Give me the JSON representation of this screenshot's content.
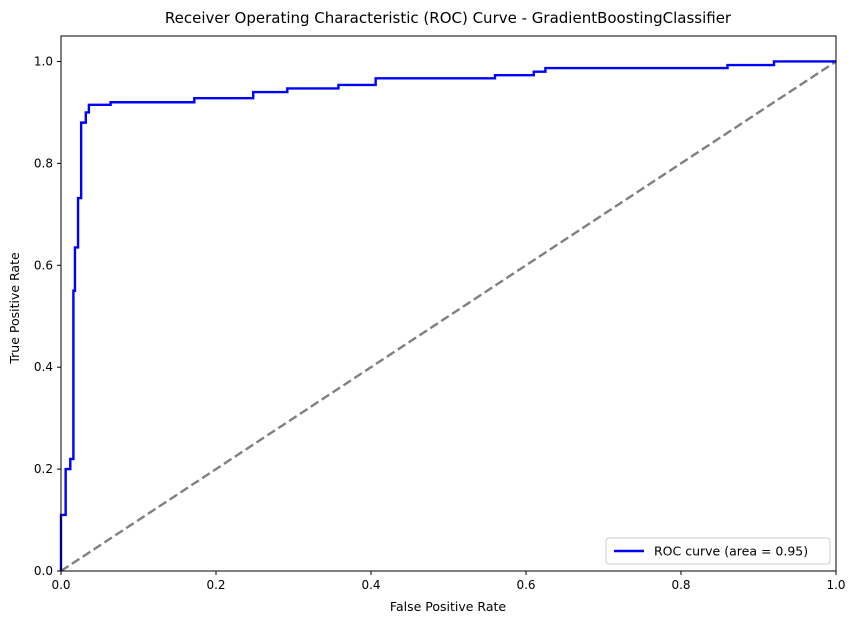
{
  "chart_data": {
    "type": "line",
    "title": "Receiver Operating Characteristic (ROC) Curve - GradientBoostingClassifier",
    "xlabel": "False Positive Rate",
    "ylabel": "True Positive Rate",
    "xlim": [
      0.0,
      1.0
    ],
    "ylim": [
      0.0,
      1.05
    ],
    "xticks": [
      "0.0",
      "0.2",
      "0.4",
      "0.6",
      "0.8",
      "1.0"
    ],
    "yticks": [
      "0.0",
      "0.2",
      "0.4",
      "0.6",
      "0.8",
      "1.0"
    ],
    "grid": false,
    "legend_position": "lower-right",
    "series": [
      {
        "name": "ROC curve (area = 0.95)",
        "color": "#0000ff",
        "style": "solid",
        "x": [
          0.0,
          0.0,
          0.006,
          0.006,
          0.012,
          0.012,
          0.016,
          0.016,
          0.018,
          0.018,
          0.022,
          0.022,
          0.026,
          0.026,
          0.032,
          0.032,
          0.036,
          0.036,
          0.064,
          0.064,
          0.172,
          0.172,
          0.248,
          0.248,
          0.292,
          0.292,
          0.358,
          0.358,
          0.406,
          0.406,
          0.56,
          0.56,
          0.61,
          0.61,
          0.625,
          0.625,
          0.86,
          0.86,
          0.92,
          0.92,
          1.0
        ],
        "y": [
          0.0,
          0.11,
          0.11,
          0.2,
          0.2,
          0.22,
          0.22,
          0.55,
          0.55,
          0.635,
          0.635,
          0.732,
          0.732,
          0.88,
          0.88,
          0.9,
          0.9,
          0.915,
          0.915,
          0.92,
          0.92,
          0.928,
          0.928,
          0.94,
          0.94,
          0.947,
          0.947,
          0.954,
          0.954,
          0.967,
          0.967,
          0.973,
          0.973,
          0.98,
          0.98,
          0.987,
          0.987,
          0.993,
          0.993,
          1.0,
          1.0
        ]
      },
      {
        "name": "",
        "color": "#808080",
        "style": "dashed",
        "x": [
          0.0,
          1.0
        ],
        "y": [
          0.0,
          1.0
        ]
      }
    ]
  }
}
